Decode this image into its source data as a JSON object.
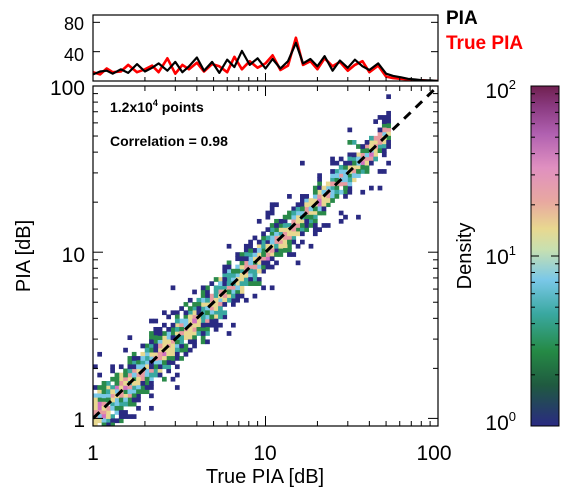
{
  "chart_data": [
    {
      "type": "line",
      "panel": "top-histogram",
      "yticks": [
        40,
        80
      ],
      "ylim": [
        0,
        90
      ],
      "xscale": "log",
      "xlim": [
        1,
        100
      ],
      "legend": [
        {
          "name": "PIA",
          "color": "#000000"
        },
        {
          "name": "True PIA",
          "color": "#ff0000"
        }
      ],
      "legend_placement": "top-right",
      "series": [
        {
          "name": "PIA",
          "color": "#000000",
          "x": [
            1.0,
            1.1,
            1.2,
            1.3,
            1.45,
            1.6,
            1.8,
            2.0,
            2.2,
            2.4,
            2.7,
            3.0,
            3.3,
            3.6,
            4.0,
            4.4,
            4.9,
            5.4,
            6.0,
            6.6,
            7.3,
            8.1,
            9.0,
            10.0,
            11.0,
            12.2,
            13.5,
            15.0,
            16.5,
            18.2,
            20.0,
            22.0,
            24.5,
            27.0,
            30.0,
            33.0,
            36.5,
            40.0,
            45.0,
            50.0,
            55.0,
            61.0,
            67.0,
            74.0,
            82.0,
            90.0,
            100.0
          ],
          "values": [
            9,
            13,
            14,
            10,
            16,
            11,
            23,
            13,
            18,
            24,
            14,
            26,
            12,
            20,
            32,
            14,
            26,
            11,
            29,
            19,
            41,
            22,
            31,
            17,
            30,
            17,
            27,
            52,
            24,
            30,
            20,
            34,
            14,
            28,
            18,
            29,
            20,
            15,
            24,
            10,
            7,
            5,
            3,
            2,
            1,
            1,
            0
          ]
        },
        {
          "name": "True PIA",
          "color": "#ff0000",
          "x": [
            1.0,
            1.1,
            1.2,
            1.3,
            1.45,
            1.6,
            1.8,
            2.0,
            2.2,
            2.4,
            2.7,
            3.0,
            3.3,
            3.6,
            4.0,
            4.4,
            4.9,
            5.4,
            6.0,
            6.6,
            7.3,
            8.1,
            9.0,
            10.0,
            11.0,
            12.2,
            13.5,
            15.0,
            16.5,
            18.2,
            20.0,
            22.0,
            24.5,
            27.0,
            30.0,
            33.0,
            36.5,
            40.0,
            45.0,
            50.0,
            55.0,
            61.0,
            67.0,
            74.0,
            82.0,
            90.0,
            100.0
          ],
          "values": [
            12,
            9,
            17,
            12,
            13,
            22,
            12,
            16,
            21,
            12,
            31,
            10,
            22,
            16,
            25,
            13,
            23,
            20,
            12,
            33,
            16,
            27,
            18,
            24,
            35,
            15,
            21,
            59,
            22,
            27,
            16,
            31,
            20,
            26,
            14,
            22,
            27,
            12,
            21,
            6,
            4,
            3,
            2,
            1,
            1,
            0,
            0
          ]
        }
      ]
    },
    {
      "type": "heatmap",
      "panel": "main-2d-histogram",
      "xlabel": "True PIA [dB]",
      "ylabel": "PIA [dB]",
      "xscale": "log",
      "yscale": "log",
      "xlim": [
        1,
        100
      ],
      "ylim": [
        0.9,
        100
      ],
      "xticks": [
        "1",
        "10",
        "100"
      ],
      "yticks": [
        "1",
        "10",
        "100"
      ],
      "one_to_one_line": "dashed black",
      "annotations": {
        "points_prefix": "1.2x10",
        "points_exp": "4",
        "points_suffix": " points",
        "correlation": "Correlation = 0.98"
      },
      "points_count": 12000,
      "correlation_value": 0.98
    },
    {
      "type": "colorbar",
      "label": "Density",
      "scale": "log",
      "range": [
        1,
        100
      ],
      "ticks": [
        {
          "base": "10",
          "exp": "0",
          "value": 1
        },
        {
          "base": "10",
          "exp": "1",
          "value": 10
        },
        {
          "base": "10",
          "exp": "2",
          "value": 100
        }
      ],
      "colormap": [
        "#2a2a82",
        "#1e6a3a",
        "#2a8a4a",
        "#3aa8a0",
        "#7ac8e8",
        "#e8d890",
        "#e89aa0",
        "#d070c0",
        "#8a4aa0",
        "#702050"
      ]
    }
  ]
}
